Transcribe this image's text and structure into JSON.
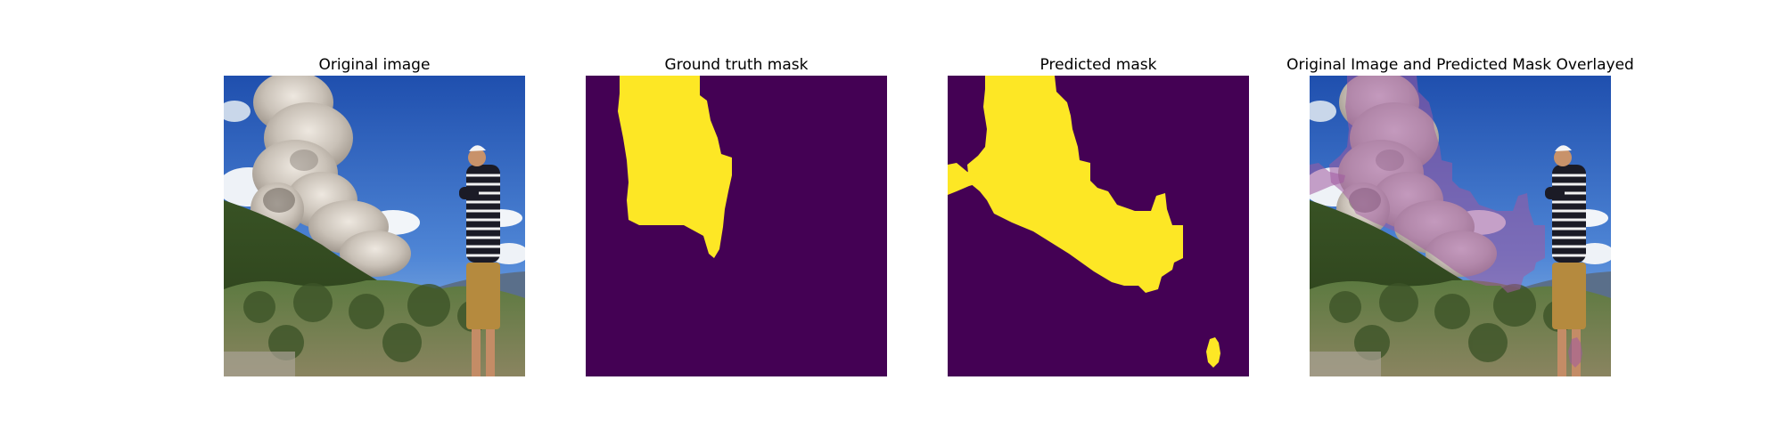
{
  "figure": {
    "panels": [
      {
        "title": "Original image"
      },
      {
        "title": "Ground truth mask"
      },
      {
        "title": "Predicted mask"
      },
      {
        "title": "Original Image and Predicted Mask Overlayed"
      }
    ]
  },
  "colors": {
    "mask_background": "#440154",
    "mask_foreground": "#fde725",
    "sky": "#2f66c4",
    "smoke": "#d9d3cc",
    "hill": "#3f5a28",
    "shrubs": "#4f6a36",
    "overlay_tint": "#a05aa0"
  }
}
